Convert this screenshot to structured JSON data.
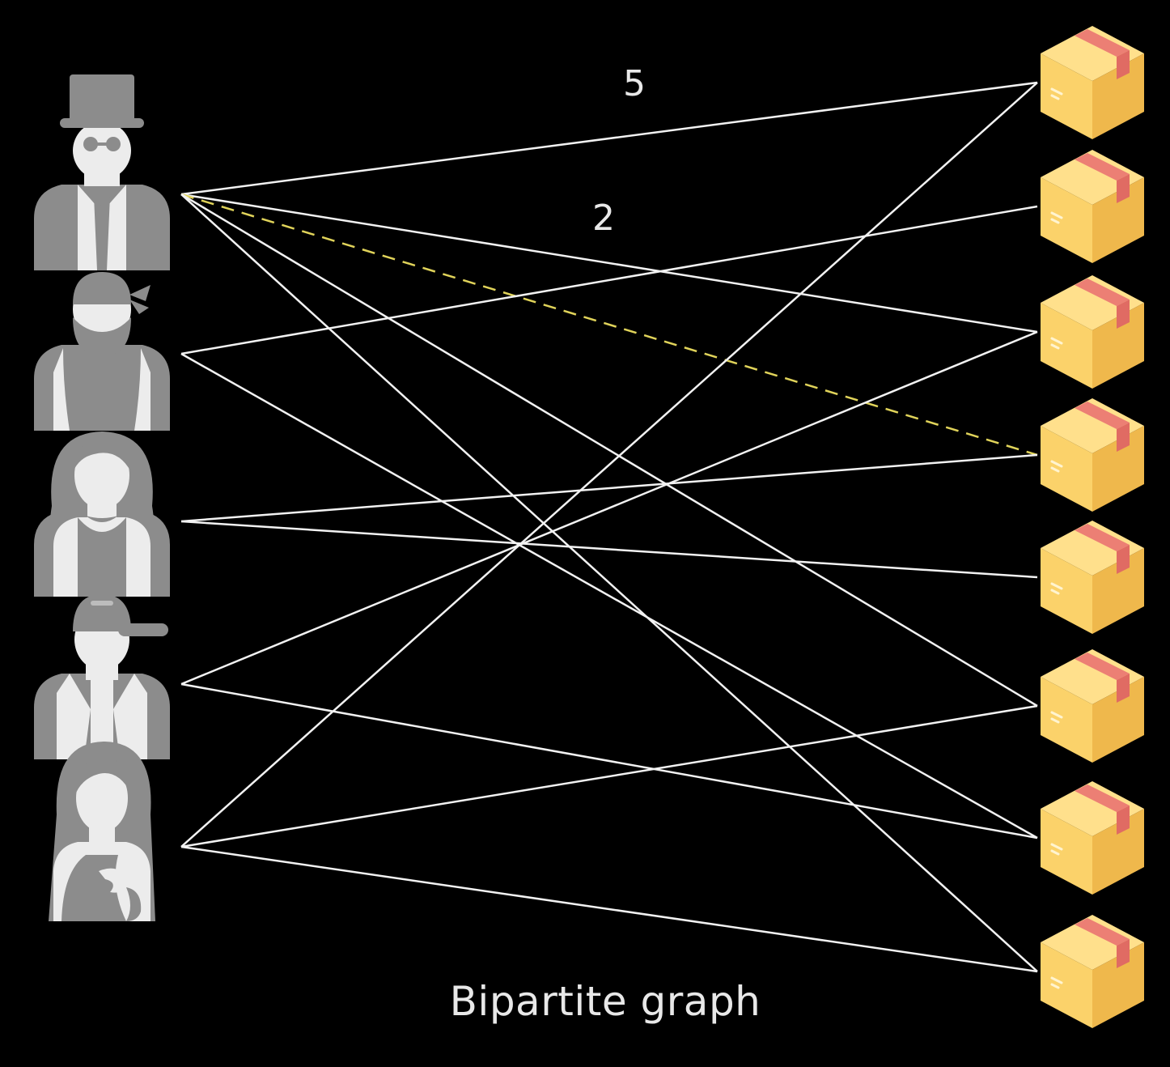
{
  "caption": "Bipartite graph",
  "edge_weights": [
    "5",
    "2"
  ],
  "users": [
    {
      "icon": "gentleman-top-hat-icon"
    },
    {
      "icon": "bearded-bandana-man-icon"
    },
    {
      "icon": "long-hair-woman-icon"
    },
    {
      "icon": "cap-man-icon"
    },
    {
      "icon": "long-hair-woman-2-icon"
    }
  ],
  "items": [
    {
      "icon": "package-box-icon"
    },
    {
      "icon": "package-box-icon"
    },
    {
      "icon": "package-box-icon"
    },
    {
      "icon": "package-box-icon"
    },
    {
      "icon": "package-box-icon"
    },
    {
      "icon": "package-box-icon"
    },
    {
      "icon": "package-box-icon"
    },
    {
      "icon": "package-box-icon"
    }
  ],
  "edges": [
    {
      "user": 0,
      "item": 0,
      "weight": "5"
    },
    {
      "user": 0,
      "item": 2
    },
    {
      "user": 0,
      "item": 3,
      "weight": "2",
      "highlighted": true
    },
    {
      "user": 0,
      "item": 5
    },
    {
      "user": 0,
      "item": 7
    },
    {
      "user": 1,
      "item": 1
    },
    {
      "user": 1,
      "item": 6
    },
    {
      "user": 2,
      "item": 3
    },
    {
      "user": 2,
      "item": 4
    },
    {
      "user": 3,
      "item": 2
    },
    {
      "user": 3,
      "item": 6
    },
    {
      "user": 4,
      "item": 0
    },
    {
      "user": 4,
      "item": 5
    },
    {
      "user": 4,
      "item": 7
    }
  ],
  "colors": {
    "background": "#000000",
    "edge": "#f2f2f2",
    "highlight_edge": "#e0d35a",
    "user_icon": "#8c8c8c",
    "user_icon_light": "#ececec",
    "box_front": "#fbd26a",
    "box_top": "#ffe08c",
    "box_side": "#eeb64a",
    "box_tape": "#e87870"
  }
}
